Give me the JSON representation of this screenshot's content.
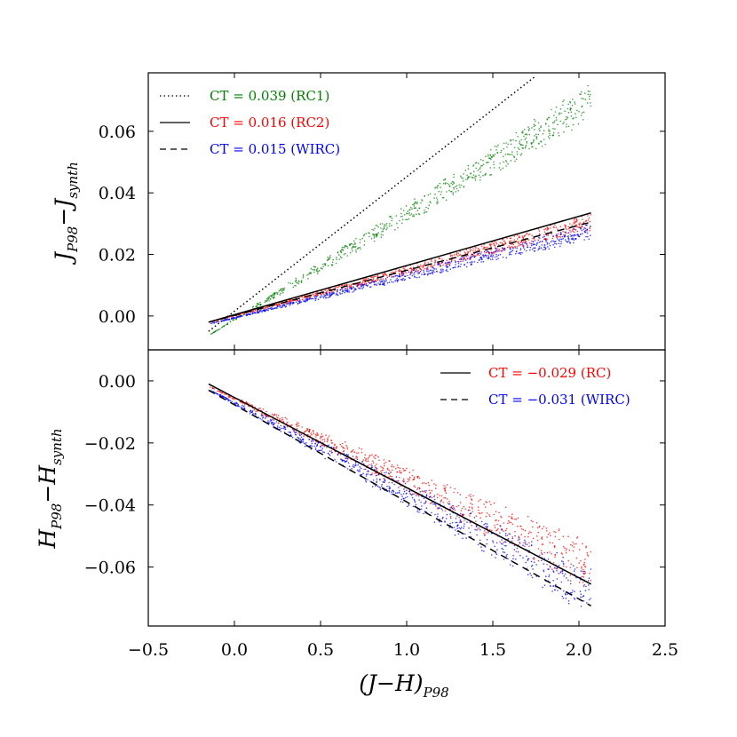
{
  "chart_data": [
    {
      "type": "scatter",
      "panel": "top",
      "ylabel": "J_P98 − J_synth",
      "ylabel_main": "J",
      "ylabel_sub1": "P98",
      "ylabel_minus": "−",
      "ylabel_main2": "J",
      "ylabel_sub2": "synth",
      "xlim": [
        -0.5,
        2.5
      ],
      "ylim": [
        -0.011,
        0.079
      ],
      "yticks": [
        0.0,
        0.02,
        0.04,
        0.06
      ],
      "ytick_labels": [
        "0.00",
        "0.02",
        "0.04",
        "0.06"
      ],
      "legend_position": "top-left",
      "series": [
        {
          "name": "RC1",
          "color": "#008000",
          "fit_style": "dotted",
          "ct": 0.039,
          "legend_label": "CT = 0.039 (RC1)",
          "fit_x": [
            -0.15,
            1.75
          ],
          "fit_y": [
            -0.005,
            0.078
          ],
          "x_range": [
            -0.14,
            2.07
          ],
          "y_at_min": -0.006,
          "y_at_max": 0.07,
          "spread": 0.009
        },
        {
          "name": "RC2",
          "color": "#ff0000",
          "fit_style": "solid",
          "ct": 0.016,
          "legend_label": "CT = 0.016 (RC2)",
          "fit_x": [
            -0.15,
            2.07
          ],
          "fit_y": [
            -0.002,
            0.0335
          ],
          "x_range": [
            -0.14,
            2.07
          ],
          "y_at_min": -0.002,
          "y_at_max": 0.0305,
          "spread": 0.004
        },
        {
          "name": "WIRC",
          "color": "#0000ff",
          "fit_style": "dashed",
          "ct": 0.015,
          "legend_label": "CT = 0.015 (WIRC)",
          "fit_x": [
            -0.15,
            2.07
          ],
          "fit_y": [
            -0.002,
            0.0305
          ],
          "x_range": [
            -0.14,
            2.07
          ],
          "y_at_min": -0.0025,
          "y_at_max": 0.0275,
          "spread": 0.004
        }
      ]
    },
    {
      "type": "scatter",
      "panel": "bottom",
      "ylabel": "H_P98 − H_synth",
      "ylabel_main": "H",
      "ylabel_sub1": "P98",
      "ylabel_minus": "−",
      "ylabel_main2": "H",
      "ylabel_sub2": "synth",
      "xlabel": "(J−H)_P98",
      "xlabel_main": "(J−H)",
      "xlabel_sub": "P98",
      "xlim": [
        -0.5,
        2.5
      ],
      "ylim": [
        -0.079,
        0.01
      ],
      "xticks": [
        -0.5,
        0.0,
        0.5,
        1.0,
        1.5,
        2.0,
        2.5
      ],
      "xtick_labels": [
        "−0.5",
        "0.0",
        "0.5",
        "1.0",
        "1.5",
        "2.0",
        "2.5"
      ],
      "yticks": [
        0.0,
        -0.02,
        -0.04,
        -0.06
      ],
      "ytick_labels": [
        "0.00",
        "−0.02",
        "−0.04",
        "−0.06"
      ],
      "legend_position": "top-right",
      "series": [
        {
          "name": "RC",
          "color": "#ff0000",
          "fit_style": "solid",
          "ct": -0.029,
          "legend_label": "CT = −0.029 (RC)",
          "fit_x": [
            -0.15,
            2.07
          ],
          "fit_y": [
            -0.001,
            -0.0655
          ],
          "x_range": [
            -0.14,
            2.07
          ],
          "y_at_min": -0.002,
          "y_at_max": -0.06,
          "spread": 0.012
        },
        {
          "name": "WIRC",
          "color": "#0000ff",
          "fit_style": "dashed",
          "ct": -0.031,
          "legend_label": "CT = −0.031 (WIRC)",
          "fit_x": [
            -0.15,
            2.07
          ],
          "fit_y": [
            -0.003,
            -0.0725
          ],
          "x_range": [
            -0.14,
            2.07
          ],
          "y_at_min": -0.003,
          "y_at_max": -0.068,
          "spread": 0.012
        }
      ]
    }
  ]
}
